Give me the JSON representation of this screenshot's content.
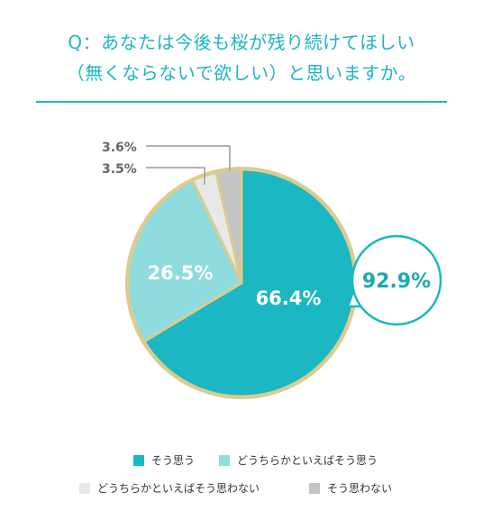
{
  "title": {
    "line1": "Q：あなたは今後も桜が残り続けてほしい",
    "line2": "（無くならないで欲しい）と思いますか。"
  },
  "chart_data": {
    "type": "pie",
    "title": "Q：あなたは今後も桜が残り続けてほしい（無くならないで欲しい）と思いますか。",
    "slices": [
      {
        "name": "そう思う",
        "value": 66.4,
        "label": "66.4%",
        "color": "#1bb7c2"
      },
      {
        "name": "どうちらかといえばそう思う",
        "value": 26.5,
        "label": "26.5%",
        "color": "#8edcdd"
      },
      {
        "name": "どうちらかといえばそう思わない",
        "value": 3.5,
        "label": "3.5%",
        "color": "#e8e8e8"
      },
      {
        "name": "そう思わない",
        "value": 3.6,
        "label": "3.6%",
        "color": "#c4c4c4"
      }
    ],
    "combined_label": "92.9%",
    "legend_position": "bottom"
  },
  "colors": {
    "accent": "#1bb7c2",
    "border": "#dccb8f",
    "callout_text": "#1aa9b3"
  }
}
